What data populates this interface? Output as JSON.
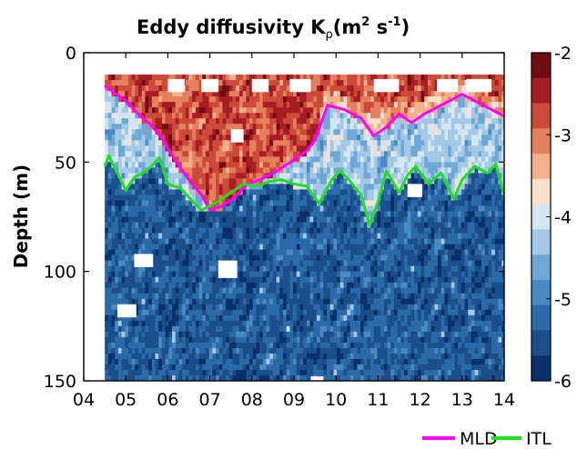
{
  "chart_data": {
    "type": "heatmap",
    "title": "Eddy diffusivity K",
    "title_subscript": "ρ",
    "title_units": "(m",
    "title_units_exp": "2",
    "title_units_mid": " s",
    "title_units_exp2": "-1",
    "title_units_end": ")",
    "ylabel": "Depth (m)",
    "xlabel": "",
    "x_ticks": [
      "04",
      "05",
      "06",
      "07",
      "08",
      "09",
      "10",
      "11",
      "12",
      "13",
      "14"
    ],
    "y_ticks": [
      "0",
      "50",
      "100",
      "150"
    ],
    "xlim": [
      4,
      14
    ],
    "ylim": [
      0,
      150
    ],
    "y_reversed": true,
    "colorbar": {
      "ticks": [
        "-2",
        "-3",
        "-4",
        "-5",
        "-6"
      ],
      "range": [
        -6,
        -2
      ],
      "colors": [
        "#08306b",
        "#1a4f8c",
        "#2b6aa8",
        "#4a8ac2",
        "#6fa8d6",
        "#a3c9e6",
        "#d4e6f2",
        "#fbe0cc",
        "#f4b08a",
        "#e4805d",
        "#cc4a3a",
        "#a81c24",
        "#6e0b13"
      ]
    },
    "series": [
      {
        "name": "MLD",
        "color": "#ff00ff",
        "x": [
          4.5,
          4.7,
          5.0,
          5.3,
          5.6,
          5.9,
          6.2,
          6.5,
          6.8,
          7.0,
          7.3,
          7.6,
          7.9,
          8.2,
          8.6,
          9.0,
          9.3,
          9.5,
          9.8,
          10.2,
          10.6,
          10.9,
          11.2,
          11.5,
          11.8,
          12.1,
          12.4,
          12.7,
          13.0,
          13.3,
          13.6,
          13.8,
          14.0
        ],
        "y": [
          15,
          18,
          22,
          28,
          33,
          40,
          50,
          58,
          65,
          72,
          70,
          66,
          60,
          58,
          54,
          49,
          45,
          40,
          24,
          26,
          30,
          38,
          34,
          28,
          32,
          28,
          25,
          22,
          19,
          22,
          25,
          27,
          29
        ]
      },
      {
        "name": "ITL",
        "color": "#22dd22",
        "x": [
          4.5,
          4.6,
          4.8,
          5.0,
          5.2,
          5.5,
          5.8,
          6.0,
          6.3,
          6.6,
          6.8,
          7.0,
          7.2,
          7.5,
          7.8,
          8.1,
          8.4,
          8.7,
          9.0,
          9.3,
          9.6,
          9.9,
          10.1,
          10.3,
          10.6,
          10.8,
          11.0,
          11.2,
          11.5,
          11.7,
          11.9,
          12.2,
          12.5,
          12.8,
          13.0,
          13.3,
          13.6,
          13.8,
          14.0
        ],
        "y": [
          52,
          47,
          55,
          63,
          57,
          54,
          48,
          60,
          62,
          68,
          72,
          70,
          68,
          64,
          60,
          61,
          59,
          58,
          60,
          61,
          69,
          58,
          54,
          58,
          65,
          79,
          68,
          54,
          64,
          56,
          52,
          60,
          55,
          67,
          58,
          52,
          55,
          51,
          65
        ]
      }
    ],
    "legend": [
      "MLD",
      "ITL"
    ],
    "legend_position": "bottom-right"
  }
}
